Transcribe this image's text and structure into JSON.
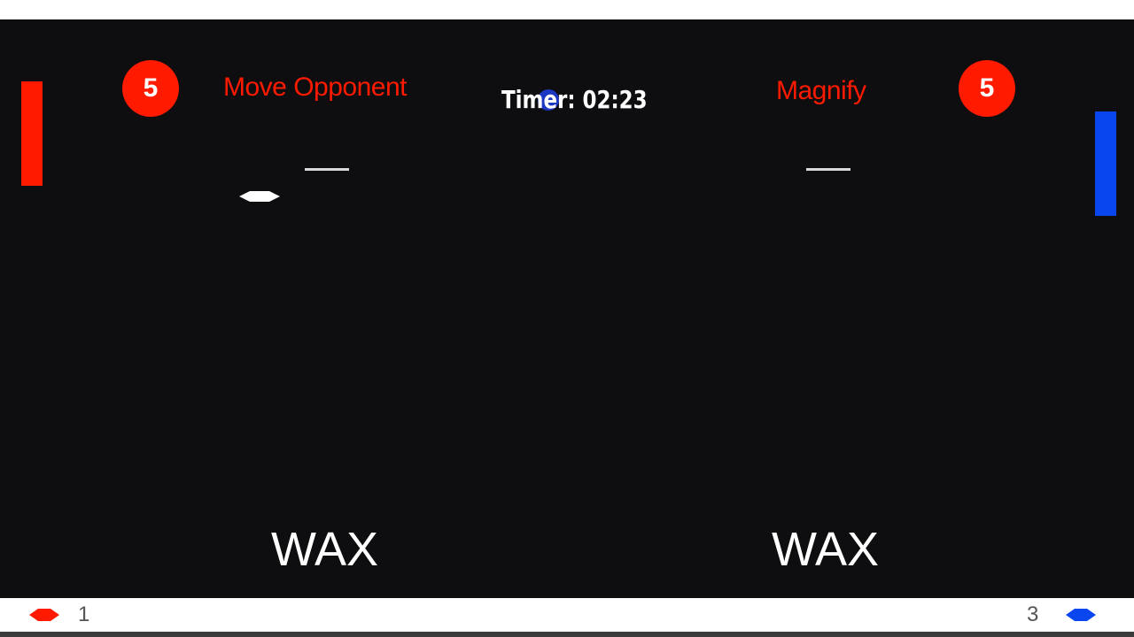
{
  "colors": {
    "red": "#ff1a00",
    "blue": "#0a46f0",
    "background": "#0e0d10"
  },
  "player_left": {
    "badge_count": "5",
    "powerup": "Move Opponent",
    "word": "WAX",
    "lives": "1",
    "life_icon": "red-diamond-icon"
  },
  "player_right": {
    "badge_count": "5",
    "powerup": "Magnify",
    "word": "WAX",
    "lives": "3",
    "life_icon": "blue-diamond-icon"
  },
  "timer": {
    "text": "Timer: 02:23"
  },
  "ball": {
    "icon": "ball-icon"
  }
}
